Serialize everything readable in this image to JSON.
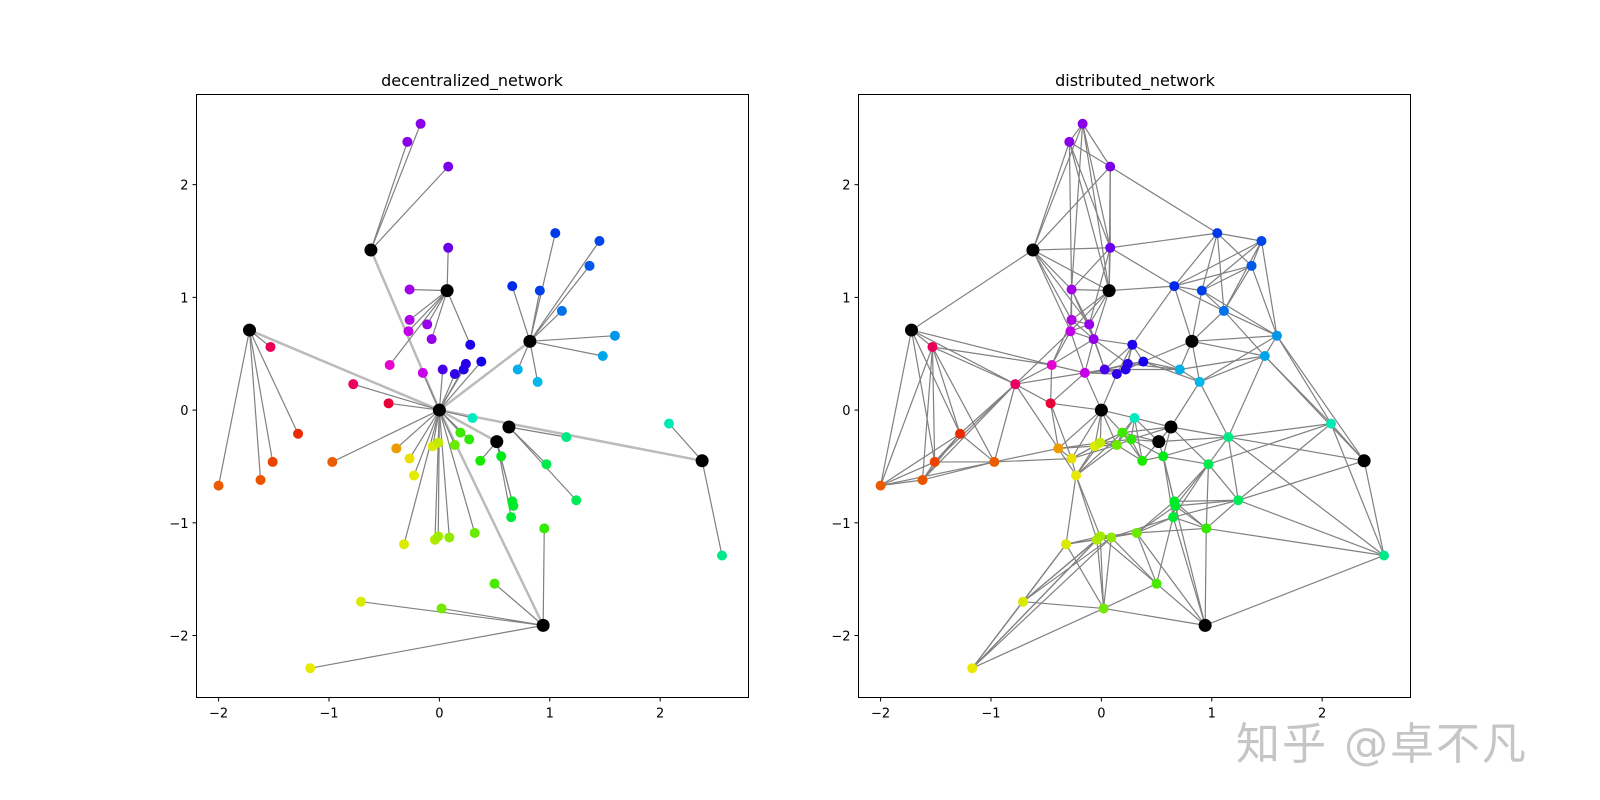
{
  "watermark": "知乎 @卓不凡",
  "chart_data": [
    {
      "type": "network",
      "title": "decentralized_network",
      "xlim": [
        -2.2,
        2.8
      ],
      "ylim": [
        -2.55,
        2.8
      ],
      "xticks": [
        -2,
        -1,
        0,
        1,
        2
      ],
      "yticks": [
        -2,
        -1,
        0,
        1,
        2
      ],
      "hub_color": "#000000",
      "edge_color": "#808080",
      "hub_edge_color": "#bbbbbb",
      "hubs": [
        [
          0.0,
          0.0
        ],
        [
          -0.62,
          1.42
        ],
        [
          0.07,
          1.06
        ],
        [
          -1.72,
          0.71
        ],
        [
          0.82,
          0.61
        ],
        [
          0.63,
          -0.15
        ],
        [
          0.52,
          -0.28
        ],
        [
          2.38,
          -0.45
        ],
        [
          0.94,
          -1.91
        ]
      ],
      "hub_links": [
        [
          0,
          1
        ],
        [
          0,
          3
        ],
        [
          0,
          4
        ],
        [
          0,
          6
        ],
        [
          0,
          7
        ],
        [
          0,
          8
        ]
      ],
      "nodes": [
        {
          "x": -0.17,
          "y": 2.54,
          "c": "#8a00ea",
          "hub": 1
        },
        {
          "x": -0.29,
          "y": 2.38,
          "c": "#8a00ea",
          "hub": 1
        },
        {
          "x": 0.08,
          "y": 2.16,
          "c": "#7a00ea",
          "hub": 1
        },
        {
          "x": 0.08,
          "y": 1.44,
          "c": "#6a00ea",
          "hub": 2
        },
        {
          "x": -0.27,
          "y": 1.07,
          "c": "#a300ea",
          "hub": 2
        },
        {
          "x": -0.27,
          "y": 0.8,
          "c": "#b000ea",
          "hub": 2
        },
        {
          "x": -0.28,
          "y": 0.7,
          "c": "#c200ea",
          "hub": 2
        },
        {
          "x": -0.11,
          "y": 0.76,
          "c": "#9800ea",
          "hub": 2
        },
        {
          "x": -0.07,
          "y": 0.63,
          "c": "#9500ea",
          "hub": 2
        },
        {
          "x": 0.28,
          "y": 0.58,
          "c": "#1f00ea",
          "hub": 2
        },
        {
          "x": -0.45,
          "y": 0.4,
          "c": "#e800d0",
          "hub": 2
        },
        {
          "x": -0.15,
          "y": 0.33,
          "c": "#c800ea",
          "hub": 0
        },
        {
          "x": 0.03,
          "y": 0.36,
          "c": "#4a00ea",
          "hub": 0
        },
        {
          "x": 0.14,
          "y": 0.32,
          "c": "#3000ea",
          "hub": 0
        },
        {
          "x": 0.22,
          "y": 0.36,
          "c": "#2200ea",
          "hub": 0
        },
        {
          "x": 0.24,
          "y": 0.41,
          "c": "#2a00ea",
          "hub": 0
        },
        {
          "x": 0.38,
          "y": 0.43,
          "c": "#1400ea",
          "hub": 0
        },
        {
          "x": 0.66,
          "y": 1.1,
          "c": "#0028ea",
          "hub": 4
        },
        {
          "x": 1.05,
          "y": 1.57,
          "c": "#0038ea",
          "hub": 4
        },
        {
          "x": 1.45,
          "y": 1.5,
          "c": "#0046ea",
          "hub": 4
        },
        {
          "x": 0.91,
          "y": 1.06,
          "c": "#0040ea",
          "hub": 4
        },
        {
          "x": 1.36,
          "y": 1.28,
          "c": "#0058ea",
          "hub": 4
        },
        {
          "x": 1.11,
          "y": 0.88,
          "c": "#0072ea",
          "hub": 4
        },
        {
          "x": 1.59,
          "y": 0.66,
          "c": "#0096ea",
          "hub": 4
        },
        {
          "x": 1.48,
          "y": 0.48,
          "c": "#00a4ea",
          "hub": 4
        },
        {
          "x": 0.71,
          "y": 0.36,
          "c": "#00b0ea",
          "hub": 4
        },
        {
          "x": 0.89,
          "y": 0.25,
          "c": "#00b8ea",
          "hub": 4
        },
        {
          "x": -1.53,
          "y": 0.56,
          "c": "#ea0058",
          "hub": 3
        },
        {
          "x": -1.28,
          "y": -0.21,
          "c": "#ea2a00",
          "hub": 3
        },
        {
          "x": -1.51,
          "y": -0.46,
          "c": "#ea4400",
          "hub": 3
        },
        {
          "x": -1.62,
          "y": -0.62,
          "c": "#ea5200",
          "hub": 3
        },
        {
          "x": -2.0,
          "y": -0.67,
          "c": "#ea5a00",
          "hub": 3
        },
        {
          "x": -0.78,
          "y": 0.23,
          "c": "#ea0060",
          "hub": 0
        },
        {
          "x": -0.46,
          "y": 0.06,
          "c": "#ea0038",
          "hub": 0
        },
        {
          "x": -0.97,
          "y": -0.46,
          "c": "#ea5e00",
          "hub": 0
        },
        {
          "x": -0.39,
          "y": -0.34,
          "c": "#ea9c00",
          "hub": 0
        },
        {
          "x": -0.27,
          "y": -0.43,
          "c": "#eae000",
          "hub": 0
        },
        {
          "x": -0.23,
          "y": -0.58,
          "c": "#e6ea00",
          "hub": 0
        },
        {
          "x": -0.06,
          "y": -0.32,
          "c": "#dcea00",
          "hub": 0
        },
        {
          "x": -0.01,
          "y": -0.29,
          "c": "#c4ea00",
          "hub": 0
        },
        {
          "x": 0.14,
          "y": -0.31,
          "c": "#6aea00",
          "hub": 0
        },
        {
          "x": 0.19,
          "y": -0.2,
          "c": "#3cea00",
          "hub": 0
        },
        {
          "x": 0.27,
          "y": -0.26,
          "c": "#2aea00",
          "hub": 0
        },
        {
          "x": 0.3,
          "y": -0.07,
          "c": "#00eac0",
          "hub": 0
        },
        {
          "x": -0.32,
          "y": -1.19,
          "c": "#dcea00",
          "hub": 0
        },
        {
          "x": -0.04,
          "y": -1.15,
          "c": "#b0ea00",
          "hub": 0
        },
        {
          "x": -0.01,
          "y": -1.12,
          "c": "#a2ea00",
          "hub": 0
        },
        {
          "x": 0.09,
          "y": -1.13,
          "c": "#90ea00",
          "hub": 0
        },
        {
          "x": 0.32,
          "y": -1.09,
          "c": "#6aea00",
          "hub": 0
        },
        {
          "x": 0.37,
          "y": -0.45,
          "c": "#1aea00",
          "hub": 6
        },
        {
          "x": 0.56,
          "y": -0.41,
          "c": "#00ea1a",
          "hub": 6
        },
        {
          "x": 0.66,
          "y": -0.81,
          "c": "#00ea26",
          "hub": 6
        },
        {
          "x": 0.67,
          "y": -0.85,
          "c": "#00ea2c",
          "hub": 6
        },
        {
          "x": 0.65,
          "y": -0.95,
          "c": "#00ea34",
          "hub": 6
        },
        {
          "x": 0.97,
          "y": -0.48,
          "c": "#00ea4e",
          "hub": 5
        },
        {
          "x": 1.15,
          "y": -0.24,
          "c": "#00ea84",
          "hub": 5
        },
        {
          "x": 1.24,
          "y": -0.8,
          "c": "#00ea5a",
          "hub": 5
        },
        {
          "x": 2.08,
          "y": -0.12,
          "c": "#00eab8",
          "hub": 7
        },
        {
          "x": 2.56,
          "y": -1.29,
          "c": "#00ea8a",
          "hub": 7
        },
        {
          "x": 0.95,
          "y": -1.05,
          "c": "#34ea00",
          "hub": 8
        },
        {
          "x": 0.5,
          "y": -1.54,
          "c": "#48ea00",
          "hub": 8
        },
        {
          "x": 0.02,
          "y": -1.76,
          "c": "#72ea00",
          "hub": 8
        },
        {
          "x": -0.71,
          "y": -1.7,
          "c": "#d8ea00",
          "hub": 8
        },
        {
          "x": -1.17,
          "y": -2.29,
          "c": "#eaea00",
          "hub": 8
        }
      ]
    },
    {
      "type": "network",
      "title": "distributed_network",
      "xlim": [
        -2.2,
        2.8
      ],
      "ylim": [
        -2.55,
        2.8
      ],
      "xticks": [
        -2,
        -1,
        0,
        1,
        2
      ],
      "yticks": [
        -2,
        -1,
        0,
        1,
        2
      ],
      "hub_color": "#000000",
      "edge_color": "#808080",
      "mesh_neighbors": 6
    }
  ]
}
